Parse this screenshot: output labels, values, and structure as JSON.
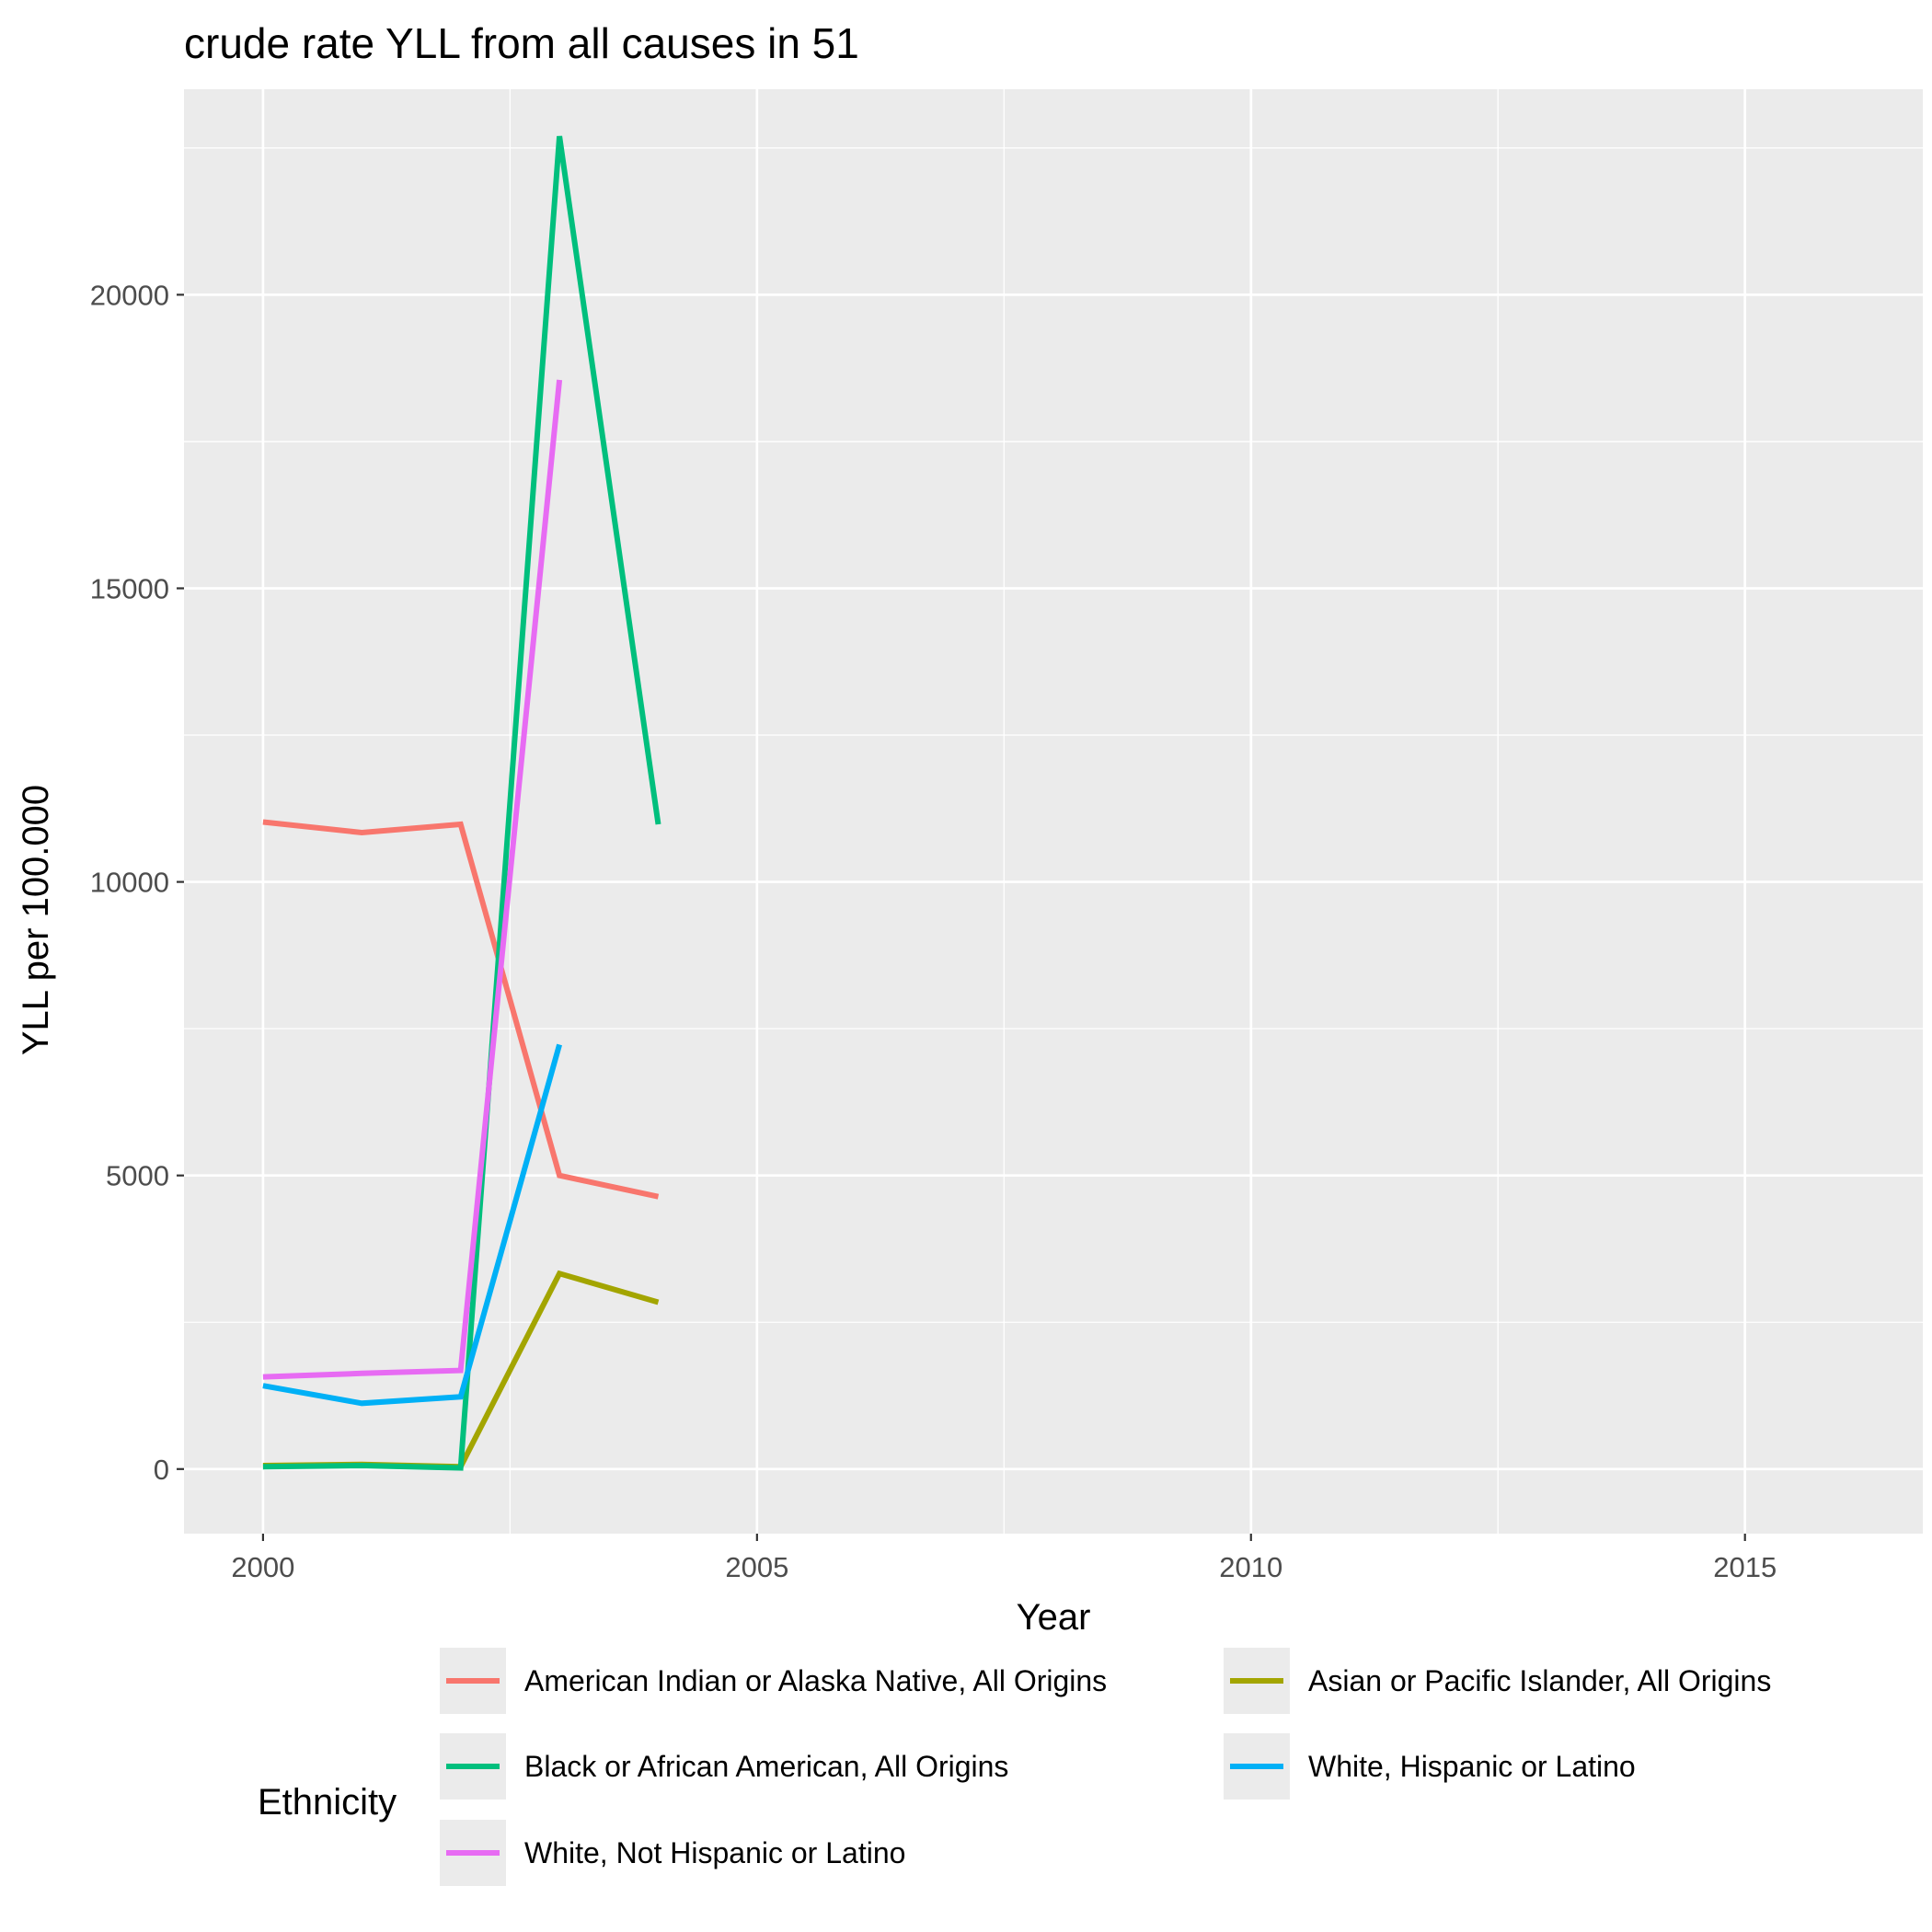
{
  "chart_data": {
    "type": "line",
    "title": "crude rate YLL from all causes in 51",
    "xlabel": "Year",
    "ylabel": "YLL per 100.000",
    "xlim": [
      1999.2,
      2016.8
    ],
    "ylim": [
      -1100,
      23500
    ],
    "x_ticks": [
      2000,
      2005,
      2010,
      2015
    ],
    "x_tick_labels": [
      "2000",
      "2005",
      "2010",
      "2015"
    ],
    "y_ticks": [
      0,
      5000,
      10000,
      15000,
      20000
    ],
    "y_tick_labels": [
      "0",
      "5000",
      "10000",
      "15000",
      "20000"
    ],
    "grid": true,
    "legend_position": "bottom",
    "legend_title": "Ethnicity",
    "series": [
      {
        "name": "American Indian or Alaska Native, All Origins",
        "color": "#F8766D",
        "x": [
          2000,
          2001,
          2002,
          2003,
          2004
        ],
        "y": [
          11020,
          10840,
          10980,
          5000,
          4640
        ]
      },
      {
        "name": "Asian or Pacific Islander, All Origins",
        "color": "#A3A500",
        "x": [
          2000,
          2001,
          2002,
          2003,
          2004
        ],
        "y": [
          60,
          80,
          40,
          3330,
          2840
        ]
      },
      {
        "name": "Black or African American, All Origins",
        "color": "#00BF7D",
        "x": [
          2000,
          2001,
          2002,
          2003,
          2004
        ],
        "y": [
          40,
          60,
          20,
          22700,
          10980
        ]
      },
      {
        "name": "White, Hispanic or Latino",
        "color": "#00B0F6",
        "x": [
          2000,
          2001,
          2002,
          2003
        ],
        "y": [
          1420,
          1120,
          1230,
          7230
        ]
      },
      {
        "name": "White, Not Hispanic or Latino",
        "color": "#E76BF3",
        "x": [
          2000,
          2001,
          2002,
          2003
        ],
        "y": [
          1570,
          1630,
          1680,
          18550
        ]
      }
    ]
  }
}
